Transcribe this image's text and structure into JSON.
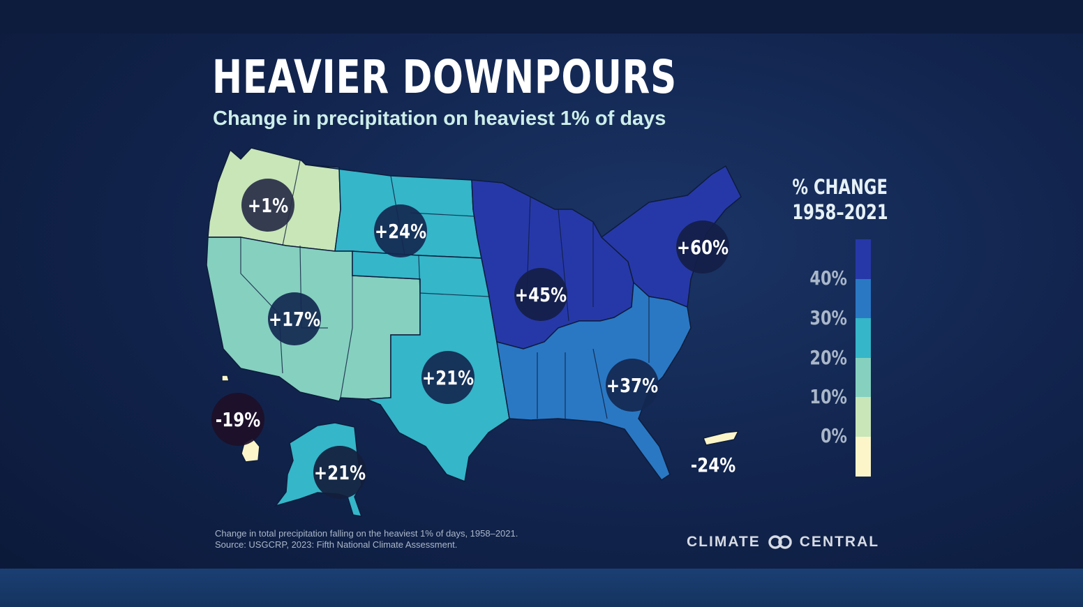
{
  "title": "HEAVIER DOWNPOURS",
  "subtitle": "Change in precipitation on heaviest 1% of days",
  "legend": {
    "title_line1": "% CHANGE",
    "title_line2": "1958–2021",
    "ticks": [
      "40%",
      "30%",
      "20%",
      "10%",
      "0%"
    ],
    "colors": [
      "#2638a8",
      "#2a78c4",
      "#35b6c9",
      "#86d0c0",
      "#c8e6b8",
      "#fbf5c9"
    ]
  },
  "regions": [
    {
      "name": "Northwest",
      "label": "+1%",
      "value": 1,
      "color": "#c8e6b8"
    },
    {
      "name": "Northern Great Plains",
      "label": "+24%",
      "value": 24,
      "color": "#35b6c9"
    },
    {
      "name": "Southwest",
      "label": "+17%",
      "value": 17,
      "color": "#86d0c0"
    },
    {
      "name": "Southern Great Plains",
      "label": "+21%",
      "value": 21,
      "color": "#35b6c9"
    },
    {
      "name": "Midwest",
      "label": "+45%",
      "value": 45,
      "color": "#2638a8"
    },
    {
      "name": "Northeast",
      "label": "+60%",
      "value": 60,
      "color": "#2638a8"
    },
    {
      "name": "Southeast",
      "label": "+37%",
      "value": 37,
      "color": "#2a78c4"
    },
    {
      "name": "Hawaii",
      "label": "-19%",
      "value": -19,
      "color": "#fbf5c9"
    },
    {
      "name": "Alaska",
      "label": "+21%",
      "value": 21,
      "color": "#35b6c9"
    },
    {
      "name": "Puerto Rico",
      "label": "-24%",
      "value": -24,
      "color": "#fbf5c9"
    }
  ],
  "footnote": {
    "line1": "Change in total precipitation falling on the heaviest 1% of days, 1958–2021.",
    "line2": "Source: USGCRP, 2023: Fifth National Climate Assessment."
  },
  "brand": {
    "left": "CLIMATE",
    "right": "CENTRAL"
  }
}
